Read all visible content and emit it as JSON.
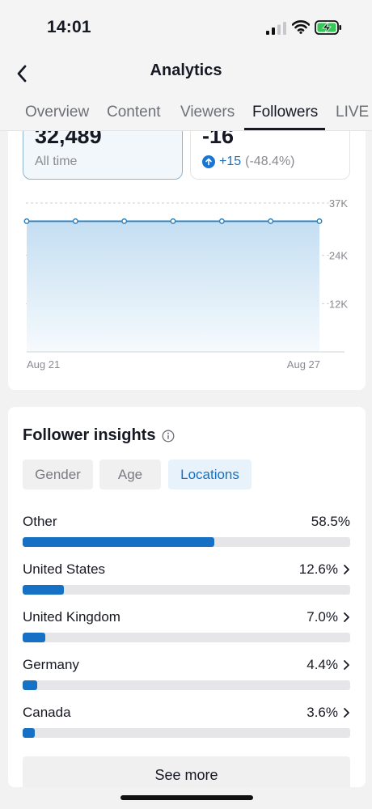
{
  "status_bar": {
    "time": "14:01"
  },
  "header": {
    "title": "Analytics"
  },
  "tabs": [
    {
      "label": "Overview"
    },
    {
      "label": "Content"
    },
    {
      "label": "Viewers"
    },
    {
      "label": "Followers",
      "active": true
    },
    {
      "label": "LIVE"
    }
  ],
  "stats": {
    "total": {
      "value": "32,489",
      "label": "All time"
    },
    "net": {
      "value": "-16",
      "change": "+15",
      "change_pct": "(-48.4%)"
    }
  },
  "chart_data": {
    "type": "area",
    "x": [
      "Aug 21",
      "Aug 22",
      "Aug 23",
      "Aug 24",
      "Aug 25",
      "Aug 26",
      "Aug 27"
    ],
    "values": [
      32489,
      32489,
      32489,
      32489,
      32489,
      32489,
      32489
    ],
    "x_tick_labels": [
      "Aug 21",
      "Aug 27"
    ],
    "y_tick_labels": [
      "37K",
      "24K",
      "12K"
    ],
    "y_ticks": [
      37000,
      24000,
      12000
    ],
    "ylim": [
      0,
      37000
    ],
    "grid": true,
    "color": "#2a7fbd"
  },
  "insights": {
    "title": "Follower insights",
    "filters": [
      {
        "label": "Gender",
        "active": false
      },
      {
        "label": "Age",
        "active": false
      },
      {
        "label": "Locations",
        "active": true
      }
    ],
    "locations": [
      {
        "name": "Other",
        "pct_label": "58.5%",
        "value": 58.5,
        "chevron": false
      },
      {
        "name": "United States",
        "pct_label": "12.6%",
        "value": 12.6,
        "chevron": true
      },
      {
        "name": "United Kingdom",
        "pct_label": "7.0%",
        "value": 7.0,
        "chevron": true
      },
      {
        "name": "Germany",
        "pct_label": "4.4%",
        "value": 4.4,
        "chevron": true
      },
      {
        "name": "Canada",
        "pct_label": "3.6%",
        "value": 3.6,
        "chevron": true
      }
    ],
    "see_more": "See more"
  },
  "colors": {
    "accent": "#1671c4",
    "bar_track": "#e6e6e8",
    "text": "#161823"
  }
}
